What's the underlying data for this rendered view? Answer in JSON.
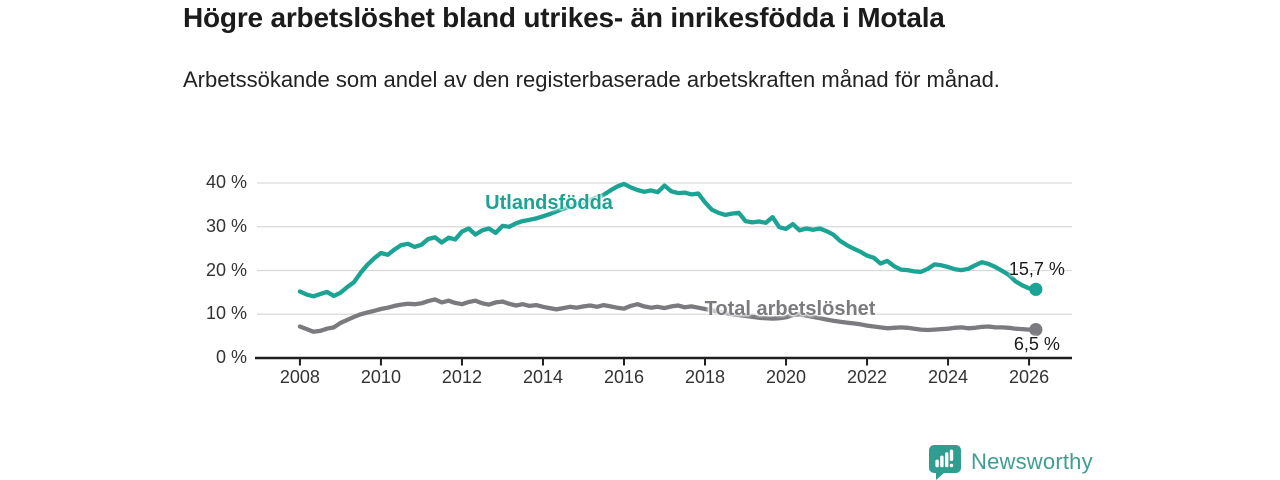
{
  "header": {
    "title": "Högre arbetslöshet bland utrikes- än inrikesfödda i Motala",
    "subtitle": "Arbetssökande som andel av den registerbaserade arbetskraften månad för månad."
  },
  "chart_data": {
    "type": "line",
    "title": "Högre arbetslöshet bland utrikes- än inrikesfödda i Motala",
    "subtitle": "Arbetssökande som andel av den registerbaserade arbetskraften månad för månad.",
    "unit": "%",
    "grid": "horizontal",
    "legend_position": "inline-labels",
    "xlim": [
      2006.94,
      2027.06
    ],
    "ylim": [
      0,
      43
    ],
    "x_start_year": 2008,
    "x_step_years": 0.1666667,
    "yticks": [
      {
        "value": 0,
        "label": "0 %"
      },
      {
        "value": 10,
        "label": "10 %"
      },
      {
        "value": 20,
        "label": "20 %"
      },
      {
        "value": 30,
        "label": "30 %"
      },
      {
        "value": 40,
        "label": "40 %"
      }
    ],
    "xticks": [
      {
        "value": 2008,
        "label": "2008"
      },
      {
        "value": 2010,
        "label": "2010"
      },
      {
        "value": 2012,
        "label": "2012"
      },
      {
        "value": 2014,
        "label": "2014"
      },
      {
        "value": 2016,
        "label": "2016"
      },
      {
        "value": 2018,
        "label": "2018"
      },
      {
        "value": 2020,
        "label": "2020"
      },
      {
        "value": 2022,
        "label": "2022"
      },
      {
        "value": 2024,
        "label": "2024"
      },
      {
        "value": 2026,
        "label": "2026"
      }
    ],
    "series": [
      {
        "name": "Utlandsfödda",
        "color": "#1ba393",
        "end_label": "15,7 %",
        "end_value": 15.7,
        "label_anchor": {
          "x": 2014.15,
          "y": 35.3
        },
        "values": [
          15.2,
          14.5,
          14.1,
          14.6,
          15.1,
          14.2,
          14.9,
          16.2,
          17.3,
          19.5,
          21.3,
          22.8,
          24.0,
          23.6,
          24.8,
          25.8,
          26.1,
          25.4,
          25.9,
          27.2,
          27.6,
          26.4,
          27.5,
          27.1,
          28.9,
          29.6,
          28.2,
          29.2,
          29.6,
          28.6,
          30.2,
          30.0,
          30.8,
          31.3,
          31.6,
          31.9,
          32.4,
          32.9,
          33.5,
          34.1,
          34.6,
          35.1,
          35.5,
          36.1,
          36.7,
          37.3,
          38.3,
          39.2,
          39.8,
          39.0,
          38.4,
          38.0,
          38.3,
          37.9,
          39.4,
          38.1,
          37.7,
          37.8,
          37.4,
          37.6,
          35.6,
          33.9,
          33.2,
          32.7,
          33.0,
          33.2,
          31.3,
          31.0,
          31.2,
          30.9,
          32.2,
          29.9,
          29.5,
          30.6,
          29.2,
          29.6,
          29.3,
          29.6,
          29.0,
          28.2,
          26.8,
          25.8,
          25.0,
          24.3,
          23.4,
          22.9,
          21.6,
          22.2,
          21.0,
          20.2,
          20.1,
          19.8,
          19.7,
          20.4,
          21.4,
          21.2,
          20.8,
          20.3,
          20.1,
          20.4,
          21.2,
          21.9,
          21.5,
          20.8,
          19.9,
          19.0,
          17.5,
          16.6,
          15.9,
          15.7
        ]
      },
      {
        "name": "Total arbetslöshet",
        "color": "#7b7b7f",
        "end_label": "6,5 %",
        "end_value": 6.5,
        "label_anchor": {
          "x": 2020.1,
          "y": 11.0
        },
        "values": [
          7.2,
          6.6,
          6.0,
          6.2,
          6.7,
          7.0,
          8.0,
          8.7,
          9.4,
          10.0,
          10.4,
          10.8,
          11.2,
          11.5,
          11.9,
          12.2,
          12.4,
          12.3,
          12.5,
          13.0,
          13.4,
          12.7,
          13.1,
          12.6,
          12.3,
          12.8,
          13.1,
          12.5,
          12.2,
          12.7,
          12.9,
          12.4,
          12.0,
          12.3,
          11.9,
          12.1,
          11.7,
          11.4,
          11.1,
          11.4,
          11.7,
          11.5,
          11.8,
          12.0,
          11.7,
          12.1,
          11.8,
          11.5,
          11.3,
          11.9,
          12.3,
          11.8,
          11.5,
          11.7,
          11.4,
          11.8,
          12.0,
          11.6,
          11.8,
          11.5,
          11.2,
          10.9,
          10.6,
          10.3,
          10.0,
          9.8,
          9.6,
          9.4,
          9.2,
          9.1,
          9.0,
          9.1,
          9.3,
          9.8,
          10.0,
          9.7,
          9.4,
          9.1,
          8.8,
          8.5,
          8.3,
          8.1,
          7.9,
          7.7,
          7.4,
          7.2,
          7.0,
          6.8,
          6.9,
          7.0,
          6.9,
          6.7,
          6.5,
          6.4,
          6.5,
          6.6,
          6.7,
          6.9,
          7.0,
          6.8,
          6.9,
          7.1,
          7.2,
          7.0,
          7.0,
          6.9,
          6.7,
          6.6,
          6.5,
          6.5
        ]
      }
    ],
    "axis_colors": {
      "grid": "#d9d9d9",
      "axis": "#1f1f1f",
      "tick_text": "#333333"
    }
  },
  "footer": {
    "brand": "Newsworthy",
    "brand_color": "#3f9e91",
    "logo_icon": "newsworthy-bar-chart-speech-bubble"
  }
}
